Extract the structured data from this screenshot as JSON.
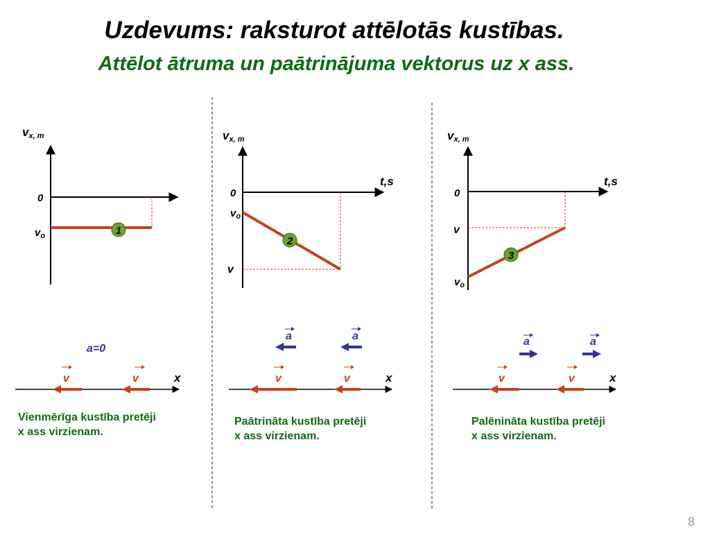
{
  "slide": {
    "title": "Uzdevums: raksturot attēlotās kustības.",
    "subtitle": "Attēlot ātruma un paātrinājuma vektorus uz x ass.",
    "page_number": "8"
  },
  "colors": {
    "line": "#c8401c",
    "marker": "#6aa32a",
    "accel": "#3232a0",
    "text_green": "#0f6a10"
  },
  "panels": [
    {
      "graph": {
        "y_label": "v",
        "y_sub": "x, m",
        "t_label": "",
        "zero": "0",
        "v0": "v",
        "v0_sub": "o",
        "v": "",
        "marker": "1",
        "line_type": "constant"
      },
      "accel_note": "a=0",
      "vector_v_label": "v",
      "vector_a_label": "",
      "x_label": "x",
      "description": [
        "Vienmērīga kustība pretēji",
        "x ass virzienam."
      ]
    },
    {
      "graph": {
        "y_label": "v",
        "y_sub": "x, m",
        "t_label": "t,s",
        "zero": "0",
        "v0": "v",
        "v0_sub": "o",
        "v": "v",
        "marker": "2",
        "line_type": "decreasing"
      },
      "accel_note": "",
      "vector_v_label": "v",
      "vector_a_label": "a",
      "accel_direction": "left",
      "x_label": "x",
      "description": [
        "Paātrināta kustība pretēji",
        "x ass virzienam."
      ]
    },
    {
      "graph": {
        "y_label": "v",
        "y_sub": "x, m",
        "t_label": "t,s",
        "zero": "0",
        "v0": "v",
        "v0_sub": "o",
        "v": "v",
        "marker": "3",
        "line_type": "increasing"
      },
      "accel_note": "",
      "vector_v_label": "v",
      "vector_a_label": "a",
      "accel_direction": "right",
      "x_label": "x",
      "description": [
        "Palēnināta kustība pretēji",
        "x ass virzienam."
      ]
    }
  ]
}
